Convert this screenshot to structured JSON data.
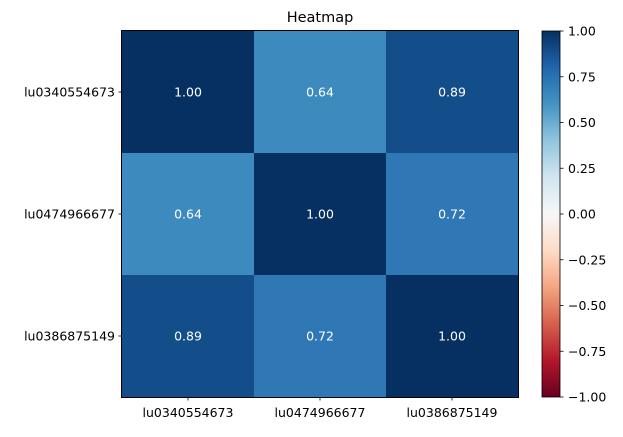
{
  "chart_data": {
    "type": "heatmap",
    "title": "Heatmap",
    "xlabel": "",
    "ylabel": "",
    "x_categories": [
      "lu0340554673",
      "lu0474966677",
      "lu0386875149"
    ],
    "y_categories": [
      "lu0340554673",
      "lu0474966677",
      "lu0386875149"
    ],
    "values": [
      [
        1.0,
        0.64,
        0.89
      ],
      [
        0.64,
        1.0,
        0.72
      ],
      [
        0.89,
        0.72,
        1.0
      ]
    ],
    "value_format": "0.00",
    "colormap": "RdBu",
    "vmin": -1.0,
    "vmax": 1.0,
    "colorbar": {
      "ticks": [
        1.0,
        0.75,
        0.5,
        0.25,
        0.0,
        -0.25,
        -0.5,
        -0.75,
        -1.0
      ],
      "tick_labels": [
        "1.00",
        "0.75",
        "0.50",
        "0.25",
        "0.00",
        "−0.25",
        "−0.50",
        "−0.75",
        "−1.00"
      ]
    },
    "grid": false
  }
}
